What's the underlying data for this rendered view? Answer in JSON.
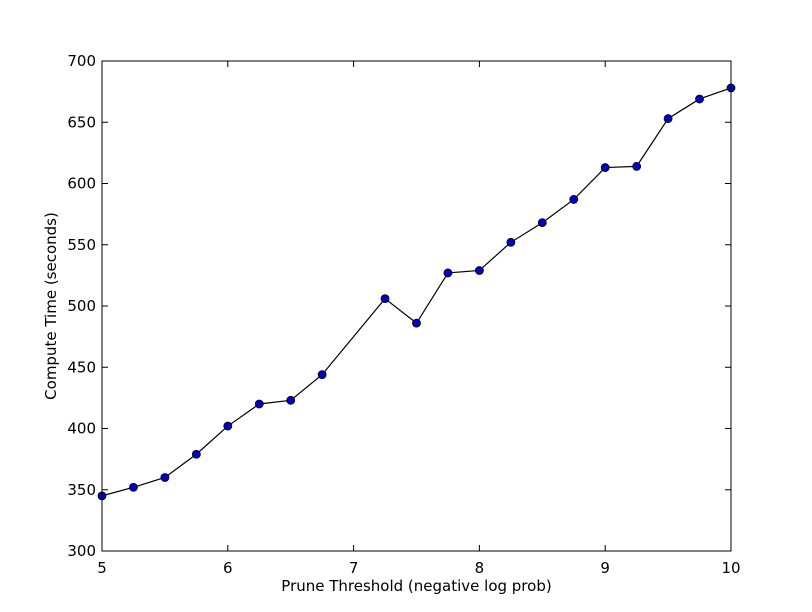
{
  "chart_data": {
    "type": "line",
    "title": "",
    "xlabel": "Prune Threshold (negative log prob)",
    "ylabel": "Compute Time (seconds)",
    "xlim": [
      5,
      10
    ],
    "ylim": [
      300,
      700
    ],
    "xticks": [
      5,
      6,
      7,
      8,
      9,
      10
    ],
    "yticks": [
      300,
      350,
      400,
      450,
      500,
      550,
      600,
      650,
      700
    ],
    "grid": false,
    "legend": "none",
    "series": [
      {
        "line_color": "#000000",
        "marker_color": "#0000bf",
        "x": [
          5,
          5.25,
          5.5,
          5.75,
          6,
          6.25,
          6.5,
          6.75,
          7.25,
          7.5,
          7.75,
          8,
          8.25,
          8.5,
          8.75,
          9,
          9.25,
          9.5,
          9.75,
          10
        ],
        "y": [
          345,
          352,
          360,
          379,
          402,
          420,
          423,
          444,
          506,
          486,
          527,
          529,
          552,
          568,
          587,
          613,
          614,
          653,
          669,
          678
        ]
      }
    ]
  }
}
